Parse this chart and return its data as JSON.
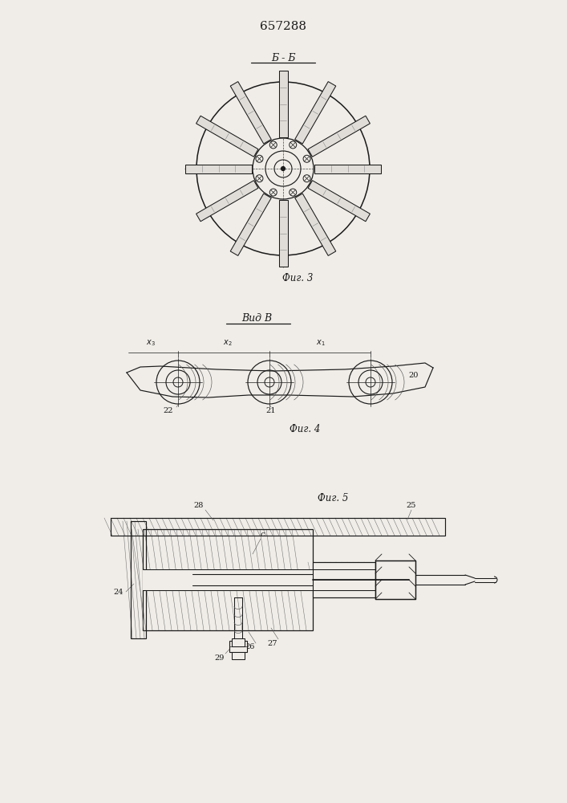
{
  "title": "657288",
  "bg_color": "#f0ede8",
  "line_color": "#1a1a1a",
  "fig3_caption": "Фиг. 3",
  "fig4_caption": "Фиг. 4",
  "fig5_caption": "Фиг. 5",
  "fig3_label": "Б - Б",
  "fig4_label": "Вид В"
}
